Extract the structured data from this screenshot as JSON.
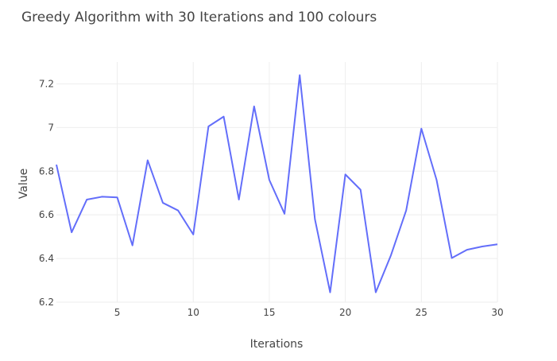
{
  "chart_data": {
    "type": "line",
    "title": "Greedy Algorithm with 30 Iterations and 100 colours",
    "xlabel": "Iterations",
    "ylabel": "Value",
    "xlim": [
      1,
      30
    ],
    "ylim": [
      6.2,
      7.3
    ],
    "x_ticks": [
      5,
      10,
      15,
      20,
      25,
      30
    ],
    "x_tick_labels": [
      "5",
      "10",
      "15",
      "20",
      "25",
      "30"
    ],
    "y_ticks": [
      6.2,
      6.4,
      6.6,
      6.8,
      7.0,
      7.2
    ],
    "y_tick_labels": [
      "6.2",
      "6.4",
      "6.6",
      "6.8",
      "7",
      "7.2"
    ],
    "grid": true,
    "line_color": "#636efa",
    "series": [
      {
        "x": [
          1,
          2,
          3,
          4,
          5,
          6,
          7,
          8,
          9,
          10,
          11,
          12,
          13,
          14,
          15,
          16,
          17,
          18,
          19,
          20,
          21,
          22,
          23,
          24,
          25,
          26,
          27,
          28,
          29,
          30
        ],
        "values": [
          6.83,
          6.52,
          6.67,
          6.683,
          6.68,
          6.46,
          6.85,
          6.655,
          6.62,
          6.51,
          7.005,
          7.05,
          6.67,
          7.097,
          6.76,
          6.605,
          7.24,
          6.58,
          6.245,
          6.785,
          6.715,
          6.245,
          6.415,
          6.62,
          6.995,
          6.76,
          6.402,
          6.44,
          6.455,
          6.465
        ]
      }
    ]
  }
}
